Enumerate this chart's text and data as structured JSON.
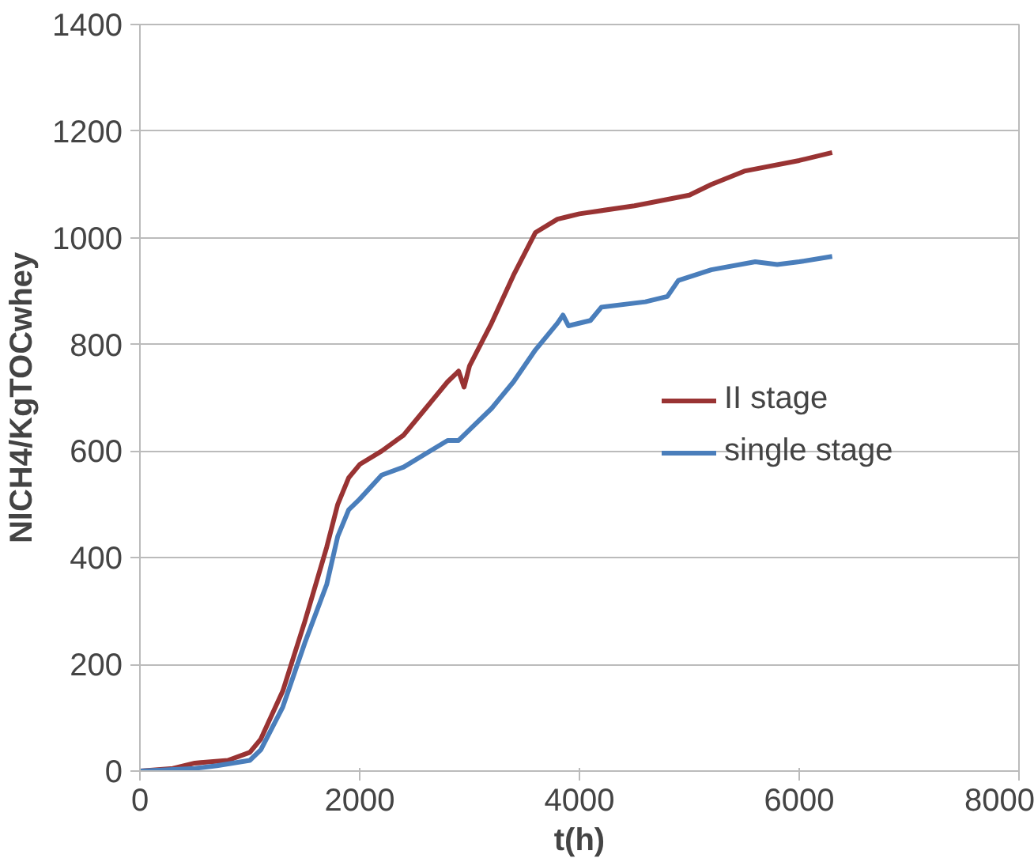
{
  "chart_data": {
    "type": "line",
    "xlabel": "t(h)",
    "ylabel": "NlCH4/KgTOCwhey",
    "xlim": [
      0,
      8000
    ],
    "xticks": [
      0,
      2000,
      4000,
      6000,
      8000
    ],
    "ylim": [
      0,
      1400
    ],
    "yticks": [
      0,
      200,
      400,
      600,
      800,
      1000,
      1200,
      1400
    ],
    "grid": "y",
    "legend": "right",
    "marker": "none",
    "line_style": "solid",
    "series": [
      {
        "name": "II stage",
        "color": "#993333",
        "x": [
          0,
          300,
          500,
          800,
          1000,
          1100,
          1300,
          1500,
          1700,
          1800,
          1900,
          2000,
          2200,
          2400,
          2600,
          2800,
          2900,
          2950,
          3000,
          3200,
          3400,
          3600,
          3800,
          3900,
          4000,
          4500,
          5000,
          5200,
          5500,
          6000,
          6300
        ],
        "values": [
          0,
          5,
          15,
          20,
          35,
          60,
          150,
          280,
          420,
          500,
          550,
          575,
          600,
          630,
          680,
          730,
          750,
          720,
          760,
          840,
          930,
          1010,
          1035,
          1040,
          1045,
          1060,
          1080,
          1100,
          1125,
          1145,
          1160
        ]
      },
      {
        "name": "single stage",
        "color": "#4a7ebb",
        "x": [
          0,
          500,
          700,
          1000,
          1100,
          1300,
          1500,
          1700,
          1800,
          1900,
          2000,
          2200,
          2400,
          2600,
          2800,
          2900,
          3000,
          3200,
          3400,
          3600,
          3800,
          3850,
          3900,
          4100,
          4200,
          4600,
          4800,
          4900,
          5200,
          5600,
          5800,
          6000,
          6300
        ],
        "values": [
          0,
          5,
          10,
          20,
          40,
          120,
          240,
          350,
          440,
          490,
          510,
          555,
          570,
          595,
          620,
          620,
          640,
          680,
          730,
          790,
          840,
          855,
          835,
          845,
          870,
          880,
          890,
          920,
          940,
          955,
          950,
          955,
          965
        ]
      }
    ]
  }
}
